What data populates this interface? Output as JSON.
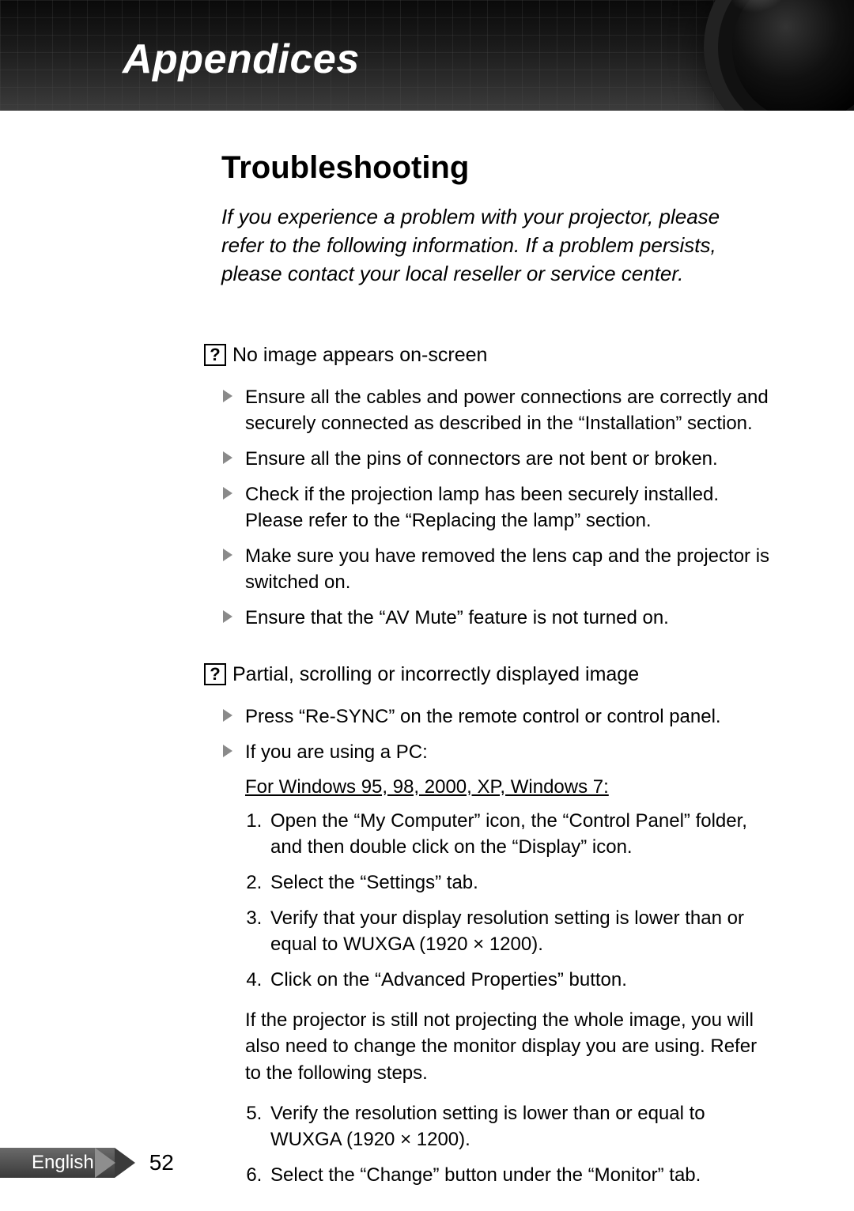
{
  "header": {
    "title": "Appendices"
  },
  "section": {
    "title": "Troubleshooting",
    "intro": "If you experience a problem with your projector, please refer to the following information. If a problem persists, please contact your local reseller or service center."
  },
  "q_icon_glyph": "?",
  "qa": [
    {
      "heading": "No image appears on-screen",
      "bullets": [
        "Ensure all the cables and power connections are correctly and securely connected as described in the “Installation” section.",
        "Ensure all the pins of connectors are not bent or broken.",
        "Check if the projection lamp has been securely installed. Please refer to the “Replacing the lamp” section.",
        "Make sure you have removed the lens cap and the projector is switched on.",
        "Ensure that the “AV Mute” feature is not turned on."
      ]
    },
    {
      "heading": "Partial, scrolling or incorrectly displayed image",
      "bullets": [
        "Press “Re-SYNC” on the remote control or control panel.",
        "If you are using a PC:"
      ],
      "sub_underline": "For Windows 95, 98, 2000, XP, Windows 7:",
      "numbered_a": [
        "Open the “My Computer” icon, the “Control Panel” folder, and then double click on the “Display” icon.",
        "Select the “Settings” tab.",
        "Verify that your display resolution setting is lower than or equal to WUXGA (1920 × 1200).",
        "Click on the “Advanced Properties” button."
      ],
      "mid_para": "If the projector is still not projecting the whole image, you will also need to change the monitor display you are using. Refer to the following steps.",
      "numbered_b_start": 5,
      "numbered_b": [
        "Verify the resolution setting is lower than or equal to WUXGA (1920 × 1200).",
        "Select the “Change” button under the “Monitor” tab."
      ]
    }
  ],
  "footer": {
    "language": "English",
    "page": "52"
  },
  "colors": {
    "bullet_triangle": "#8a8a8a",
    "header_bg_dark": "#0a0a0a",
    "footer_tab_bg": "#3a3a3a",
    "text": "#000000"
  }
}
